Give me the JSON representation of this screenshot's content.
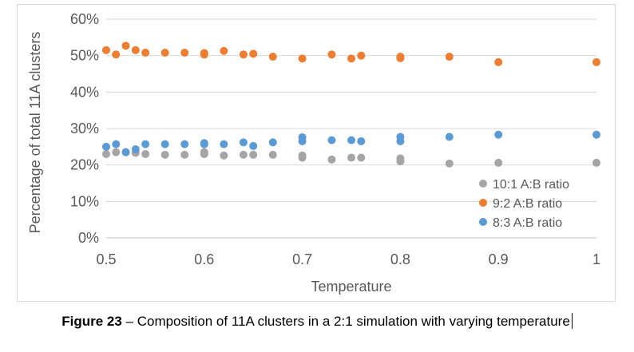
{
  "chart_data": {
    "type": "scatter",
    "xlabel": "Temperature",
    "ylabel": "Percentage of total 11A clusters",
    "xlim": [
      0.5,
      1
    ],
    "ylim": [
      0,
      0.6
    ],
    "x_ticks": [
      "0.5",
      "0.6",
      "0.7",
      "0.8",
      "0.9",
      "1"
    ],
    "y_ticks": [
      "0%",
      "10%",
      "20%",
      "30%",
      "40%",
      "50%",
      "60%"
    ],
    "grid": "horizontal",
    "legend_position": "bottom-right",
    "series": [
      {
        "name": "10:1 A:B ratio",
        "color": "#a5a5a5",
        "points": [
          [
            0.5,
            0.23
          ],
          [
            0.51,
            0.235
          ],
          [
            0.52,
            0.235
          ],
          [
            0.53,
            0.233
          ],
          [
            0.54,
            0.23
          ],
          [
            0.56,
            0.228
          ],
          [
            0.58,
            0.228
          ],
          [
            0.6,
            0.23
          ],
          [
            0.6,
            0.235
          ],
          [
            0.62,
            0.226
          ],
          [
            0.64,
            0.228
          ],
          [
            0.65,
            0.228
          ],
          [
            0.67,
            0.228
          ],
          [
            0.7,
            0.226
          ],
          [
            0.7,
            0.22
          ],
          [
            0.73,
            0.215
          ],
          [
            0.75,
            0.22
          ],
          [
            0.76,
            0.22
          ],
          [
            0.8,
            0.218
          ],
          [
            0.8,
            0.21
          ],
          [
            0.85,
            0.204
          ],
          [
            0.9,
            0.206
          ],
          [
            1.0,
            0.206
          ]
        ]
      },
      {
        "name": "9:2 A:B ratio",
        "color": "#ed7d31",
        "points": [
          [
            0.5,
            0.515
          ],
          [
            0.51,
            0.503
          ],
          [
            0.52,
            0.527
          ],
          [
            0.53,
            0.515
          ],
          [
            0.54,
            0.508
          ],
          [
            0.56,
            0.508
          ],
          [
            0.58,
            0.508
          ],
          [
            0.6,
            0.507
          ],
          [
            0.6,
            0.503
          ],
          [
            0.62,
            0.513
          ],
          [
            0.64,
            0.503
          ],
          [
            0.65,
            0.505
          ],
          [
            0.67,
            0.497
          ],
          [
            0.7,
            0.492
          ],
          [
            0.73,
            0.503
          ],
          [
            0.75,
            0.492
          ],
          [
            0.76,
            0.5
          ],
          [
            0.8,
            0.497
          ],
          [
            0.8,
            0.493
          ],
          [
            0.85,
            0.497
          ],
          [
            0.9,
            0.482
          ],
          [
            1.0,
            0.482
          ]
        ]
      },
      {
        "name": "8:3 A:B ratio",
        "color": "#5b9bd5",
        "points": [
          [
            0.5,
            0.25
          ],
          [
            0.51,
            0.257
          ],
          [
            0.52,
            0.235
          ],
          [
            0.53,
            0.243
          ],
          [
            0.54,
            0.257
          ],
          [
            0.56,
            0.257
          ],
          [
            0.58,
            0.257
          ],
          [
            0.6,
            0.257
          ],
          [
            0.6,
            0.26
          ],
          [
            0.62,
            0.257
          ],
          [
            0.64,
            0.262
          ],
          [
            0.65,
            0.252
          ],
          [
            0.67,
            0.262
          ],
          [
            0.7,
            0.276
          ],
          [
            0.7,
            0.265
          ],
          [
            0.73,
            0.268
          ],
          [
            0.75,
            0.268
          ],
          [
            0.76,
            0.265
          ],
          [
            0.8,
            0.277
          ],
          [
            0.8,
            0.265
          ],
          [
            0.85,
            0.277
          ],
          [
            0.9,
            0.283
          ],
          [
            1.0,
            0.283
          ]
        ]
      }
    ]
  },
  "caption": {
    "label": "Figure 23",
    "text": " – Composition of 11A clusters in a 2:1 simulation with varying temperature"
  }
}
